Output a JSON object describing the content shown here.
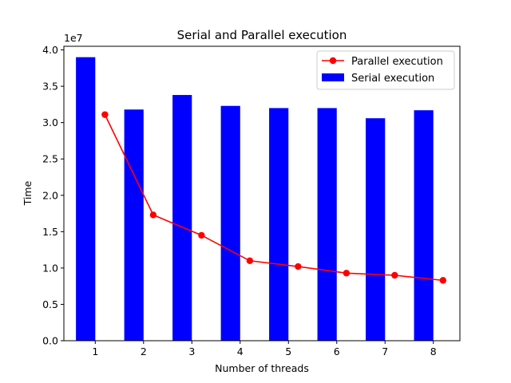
{
  "chart_data": {
    "type": "bar",
    "title": "Serial and Parallel execution",
    "xlabel": "Number of threads",
    "ylabel": "Time",
    "y_multiplier_label": "1e7",
    "ylim": [
      0,
      40500000
    ],
    "xlim": [
      0.35,
      8.55
    ],
    "x_ticks": [
      1,
      2,
      3,
      4,
      5,
      6,
      7,
      8
    ],
    "y_ticks": [
      0,
      5000000,
      10000000,
      15000000,
      20000000,
      25000000,
      30000000,
      35000000,
      40000000
    ],
    "y_tick_labels": [
      "0.0",
      "0.5",
      "1.0",
      "1.5",
      "2.0",
      "2.5",
      "3.0",
      "3.5",
      "4.0"
    ],
    "grid": false,
    "legend_position": "top-right",
    "series": [
      {
        "name": "Serial execution",
        "type": "bar",
        "color": "#0000ff",
        "x": [
          0.8,
          1.8,
          2.8,
          3.8,
          4.8,
          5.8,
          6.8,
          7.8
        ],
        "values": [
          39000000,
          31800000,
          33800000,
          32300000,
          32000000,
          32000000,
          30600000,
          31700000
        ]
      },
      {
        "name": "Parallel execution",
        "type": "line",
        "marker": "circle",
        "color": "#ff0000",
        "x": [
          1.2,
          2.2,
          3.2,
          4.2,
          5.2,
          6.2,
          7.2,
          8.2
        ],
        "values": [
          31100000,
          17300000,
          14500000,
          11000000,
          10200000,
          9300000,
          9000000,
          8300000
        ]
      }
    ]
  }
}
